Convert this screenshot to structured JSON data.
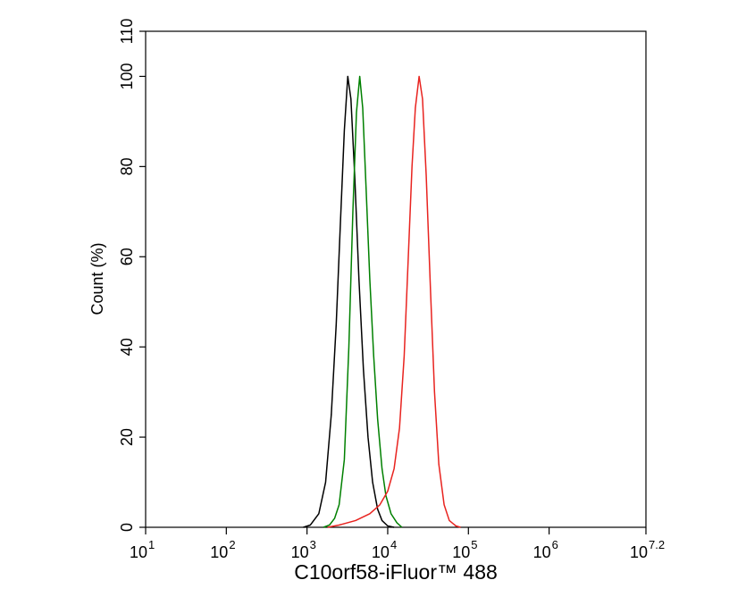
{
  "chart_data": {
    "type": "line",
    "x_label": "C10orf58-iFluor™ 488",
    "y_label": "Count  (%)",
    "xlog": true,
    "xlim": [
      10,
      15848931.92
    ],
    "xticks": [
      {
        "value": 10,
        "label": "10",
        "exponent": 1
      },
      {
        "value": 100,
        "label": "10",
        "exponent": 2
      },
      {
        "value": 1000,
        "label": "10",
        "exponent": 3
      },
      {
        "value": 10000,
        "label": "10",
        "exponent": 4
      },
      {
        "value": 100000,
        "label": "10",
        "exponent": 5
      },
      {
        "value": 1000000,
        "label": "10",
        "exponent": 6
      },
      {
        "value": 15848931.92,
        "label": "10",
        "exponent": 7.2
      }
    ],
    "ylim": [
      0,
      110
    ],
    "yticks": [
      0,
      20,
      40,
      60,
      80,
      100,
      110
    ],
    "series": [
      {
        "color": "#000000",
        "x": [
          900,
          1100,
          1400,
          1700,
          2000,
          2300,
          2600,
          2900,
          3200,
          3500,
          3900,
          4400,
          5000,
          5700,
          6500,
          7500,
          8500,
          10000,
          12000
        ],
        "values": [
          0,
          0.5,
          3,
          10,
          25,
          45,
          68,
          88,
          100,
          95,
          78,
          55,
          35,
          20,
          10,
          4,
          1.5,
          0.3,
          0
        ]
      },
      {
        "color": "#008000",
        "x": [
          1600,
          1900,
          2200,
          2500,
          2900,
          3300,
          3700,
          4100,
          4500,
          4900,
          5400,
          6000,
          6700,
          7500,
          8500,
          9500,
          11000,
          13000,
          15000
        ],
        "values": [
          0,
          0.5,
          2,
          5,
          15,
          40,
          70,
          92,
          100,
          93,
          75,
          55,
          38,
          24,
          13,
          7,
          3,
          1,
          0
        ]
      },
      {
        "color": "#e8231f",
        "x": [
          1800,
          2500,
          4000,
          6000,
          8000,
          10000,
          12000,
          14000,
          16000,
          18000,
          20000,
          22000,
          24500,
          27000,
          30000,
          34000,
          38000,
          43000,
          50000,
          58000,
          70000,
          80000
        ],
        "values": [
          0,
          0.5,
          1.5,
          3,
          5,
          8,
          13,
          22,
          38,
          60,
          80,
          93,
          100,
          95,
          78,
          52,
          30,
          14,
          5,
          1.5,
          0.3,
          0
        ]
      }
    ]
  }
}
